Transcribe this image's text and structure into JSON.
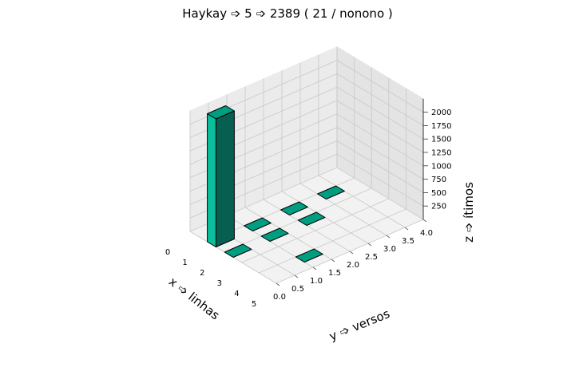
{
  "chart_data": {
    "type": "bar3d",
    "title": "Haykay ➩ 5 ➩ 2389 ( 21 / nonono )",
    "xlabel": "x ➩ linhas",
    "ylabel": "y ➩ versos",
    "zlabel": "z ➩ ítimos",
    "xlim": [
      0,
      5
    ],
    "ylim": [
      0,
      4
    ],
    "zlim": [
      0,
      2250
    ],
    "x_ticks": [
      "0",
      "1",
      "2",
      "3",
      "4",
      "5"
    ],
    "y_ticks": [
      "0.0",
      "0.5",
      "1.0",
      "1.5",
      "2.0",
      "2.5",
      "3.0",
      "3.5",
      "4.0"
    ],
    "z_ticks": [
      "250",
      "500",
      "750",
      "1000",
      "1250",
      "1500",
      "1750",
      "2000"
    ],
    "bar_color": "#009e80",
    "grid": true,
    "bars": [
      {
        "x": 1,
        "y": 0,
        "z": 2389
      },
      {
        "x": 1,
        "y": 1,
        "z": 0
      },
      {
        "x": 1,
        "y": 2,
        "z": 0
      },
      {
        "x": 1,
        "y": 3,
        "z": 0
      },
      {
        "x": 2,
        "y": 0,
        "z": 0
      },
      {
        "x": 2,
        "y": 1,
        "z": 0
      },
      {
        "x": 2,
        "y": 2,
        "z": 0
      },
      {
        "x": 4,
        "y": 1,
        "z": 0
      }
    ]
  }
}
